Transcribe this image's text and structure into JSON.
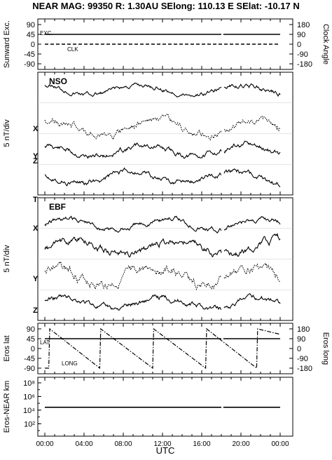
{
  "header": {
    "title": "NEAR MAG: 99350  R: 1.30AU  SElong:  110.13 E  SElat:  -10.17 N"
  },
  "chart_data": [
    {
      "type": "line",
      "panel": "sunward",
      "ylabel": "Sunward Exc.",
      "ylabel_right": "Clock Angle",
      "ylim": [
        -90,
        90
      ],
      "ylim_right": [
        -180,
        180
      ],
      "yticks": [
        "90",
        "45",
        "0",
        "-45",
        "-90"
      ],
      "yticks_right": [
        "180",
        "90",
        "0",
        "-90",
        "-180"
      ],
      "grid": false,
      "series": [
        {
          "name": "EXC.",
          "axis": "left",
          "style": "solid",
          "gap": [
            18.0,
            18.2
          ],
          "x": [
            0,
            24
          ],
          "y": [
            45,
            45
          ]
        },
        {
          "name": "CLK",
          "axis": "right",
          "style": "dashed",
          "x": [
            0,
            24
          ],
          "y": [
            0,
            0
          ]
        }
      ]
    },
    {
      "type": "line",
      "panel": "nso",
      "label": "NSO",
      "ylabel": "5 nT/div",
      "markers": [
        "X",
        "Y",
        "Z"
      ],
      "series": [
        {
          "name": "X",
          "style": "solid",
          "baseline": 1.5,
          "amp": 6,
          "seed": 11
        },
        {
          "name": "Y",
          "style": "dotted",
          "baseline": 2.3,
          "amp": 8,
          "seed": 23
        },
        {
          "name": "Z",
          "style": "solid",
          "baseline": 0.6,
          "amp": 6,
          "seed": 37
        },
        {
          "name": "NSO",
          "style": "solid",
          "baseline": 3.6,
          "amp": 5,
          "seed": 5
        }
      ]
    },
    {
      "type": "line",
      "panel": "ebf",
      "label": "EBF",
      "ylabel": "5 nT/div",
      "markers": [
        "T",
        "X",
        "Y",
        "Z"
      ],
      "series": [
        {
          "name": "T",
          "style": "solid",
          "baseline": 3.3,
          "amp": 6,
          "seed": 41
        },
        {
          "name": "X",
          "style": "solid",
          "baseline": 2.5,
          "amp": 8,
          "seed": 53
        },
        {
          "name": "Y",
          "style": "dotted",
          "baseline": 1.5,
          "amp": 10,
          "seed": 67
        },
        {
          "name": "Z",
          "style": "solid",
          "baseline": 0.6,
          "amp": 6,
          "seed": 79
        }
      ]
    },
    {
      "type": "line",
      "panel": "eros",
      "ylabel": "Eros lat",
      "ylabel_right": "Eros long",
      "ylim": [
        -90,
        90
      ],
      "ylim_right": [
        -180,
        180
      ],
      "yticks": [
        "90",
        "45",
        "0",
        "-45",
        "-90"
      ],
      "yticks_right": [
        "180",
        "90",
        "0",
        "-90",
        "-180"
      ],
      "series": [
        {
          "name": "LAT",
          "axis": "left",
          "style": "solid",
          "gap": [
            18.0,
            18.2
          ],
          "x": [
            0,
            24
          ],
          "y": [
            45,
            45
          ]
        },
        {
          "name": "LONG",
          "axis": "right",
          "style": "dashdot",
          "x": [
            0,
            0.4,
            0.5,
            5.6,
            5.7,
            11.0,
            11.1,
            16.4,
            16.5,
            21.6,
            21.7,
            24
          ],
          "y": [
            -180,
            -180,
            180,
            -180,
            180,
            -180,
            180,
            -180,
            180,
            -180,
            180,
            130
          ]
        }
      ]
    },
    {
      "type": "line",
      "panel": "distance",
      "ylabel": "Eros-NEAR km",
      "scale": "log",
      "ylim": [
        10,
        100000000
      ],
      "yticks": [
        "10⁸",
        "10⁶",
        "10⁴",
        "10²"
      ],
      "xlabel": "UTC",
      "xticks": [
        "00:00",
        "04:00",
        "08:00",
        "12:00",
        "16:00",
        "20:00",
        "00:00"
      ],
      "xlim": [
        0,
        24
      ],
      "series": [
        {
          "axis": "left",
          "style": "solid",
          "gap": [
            18.0,
            18.2
          ],
          "x": [
            0,
            24
          ],
          "y": [
            26000,
            26000
          ]
        }
      ]
    }
  ]
}
